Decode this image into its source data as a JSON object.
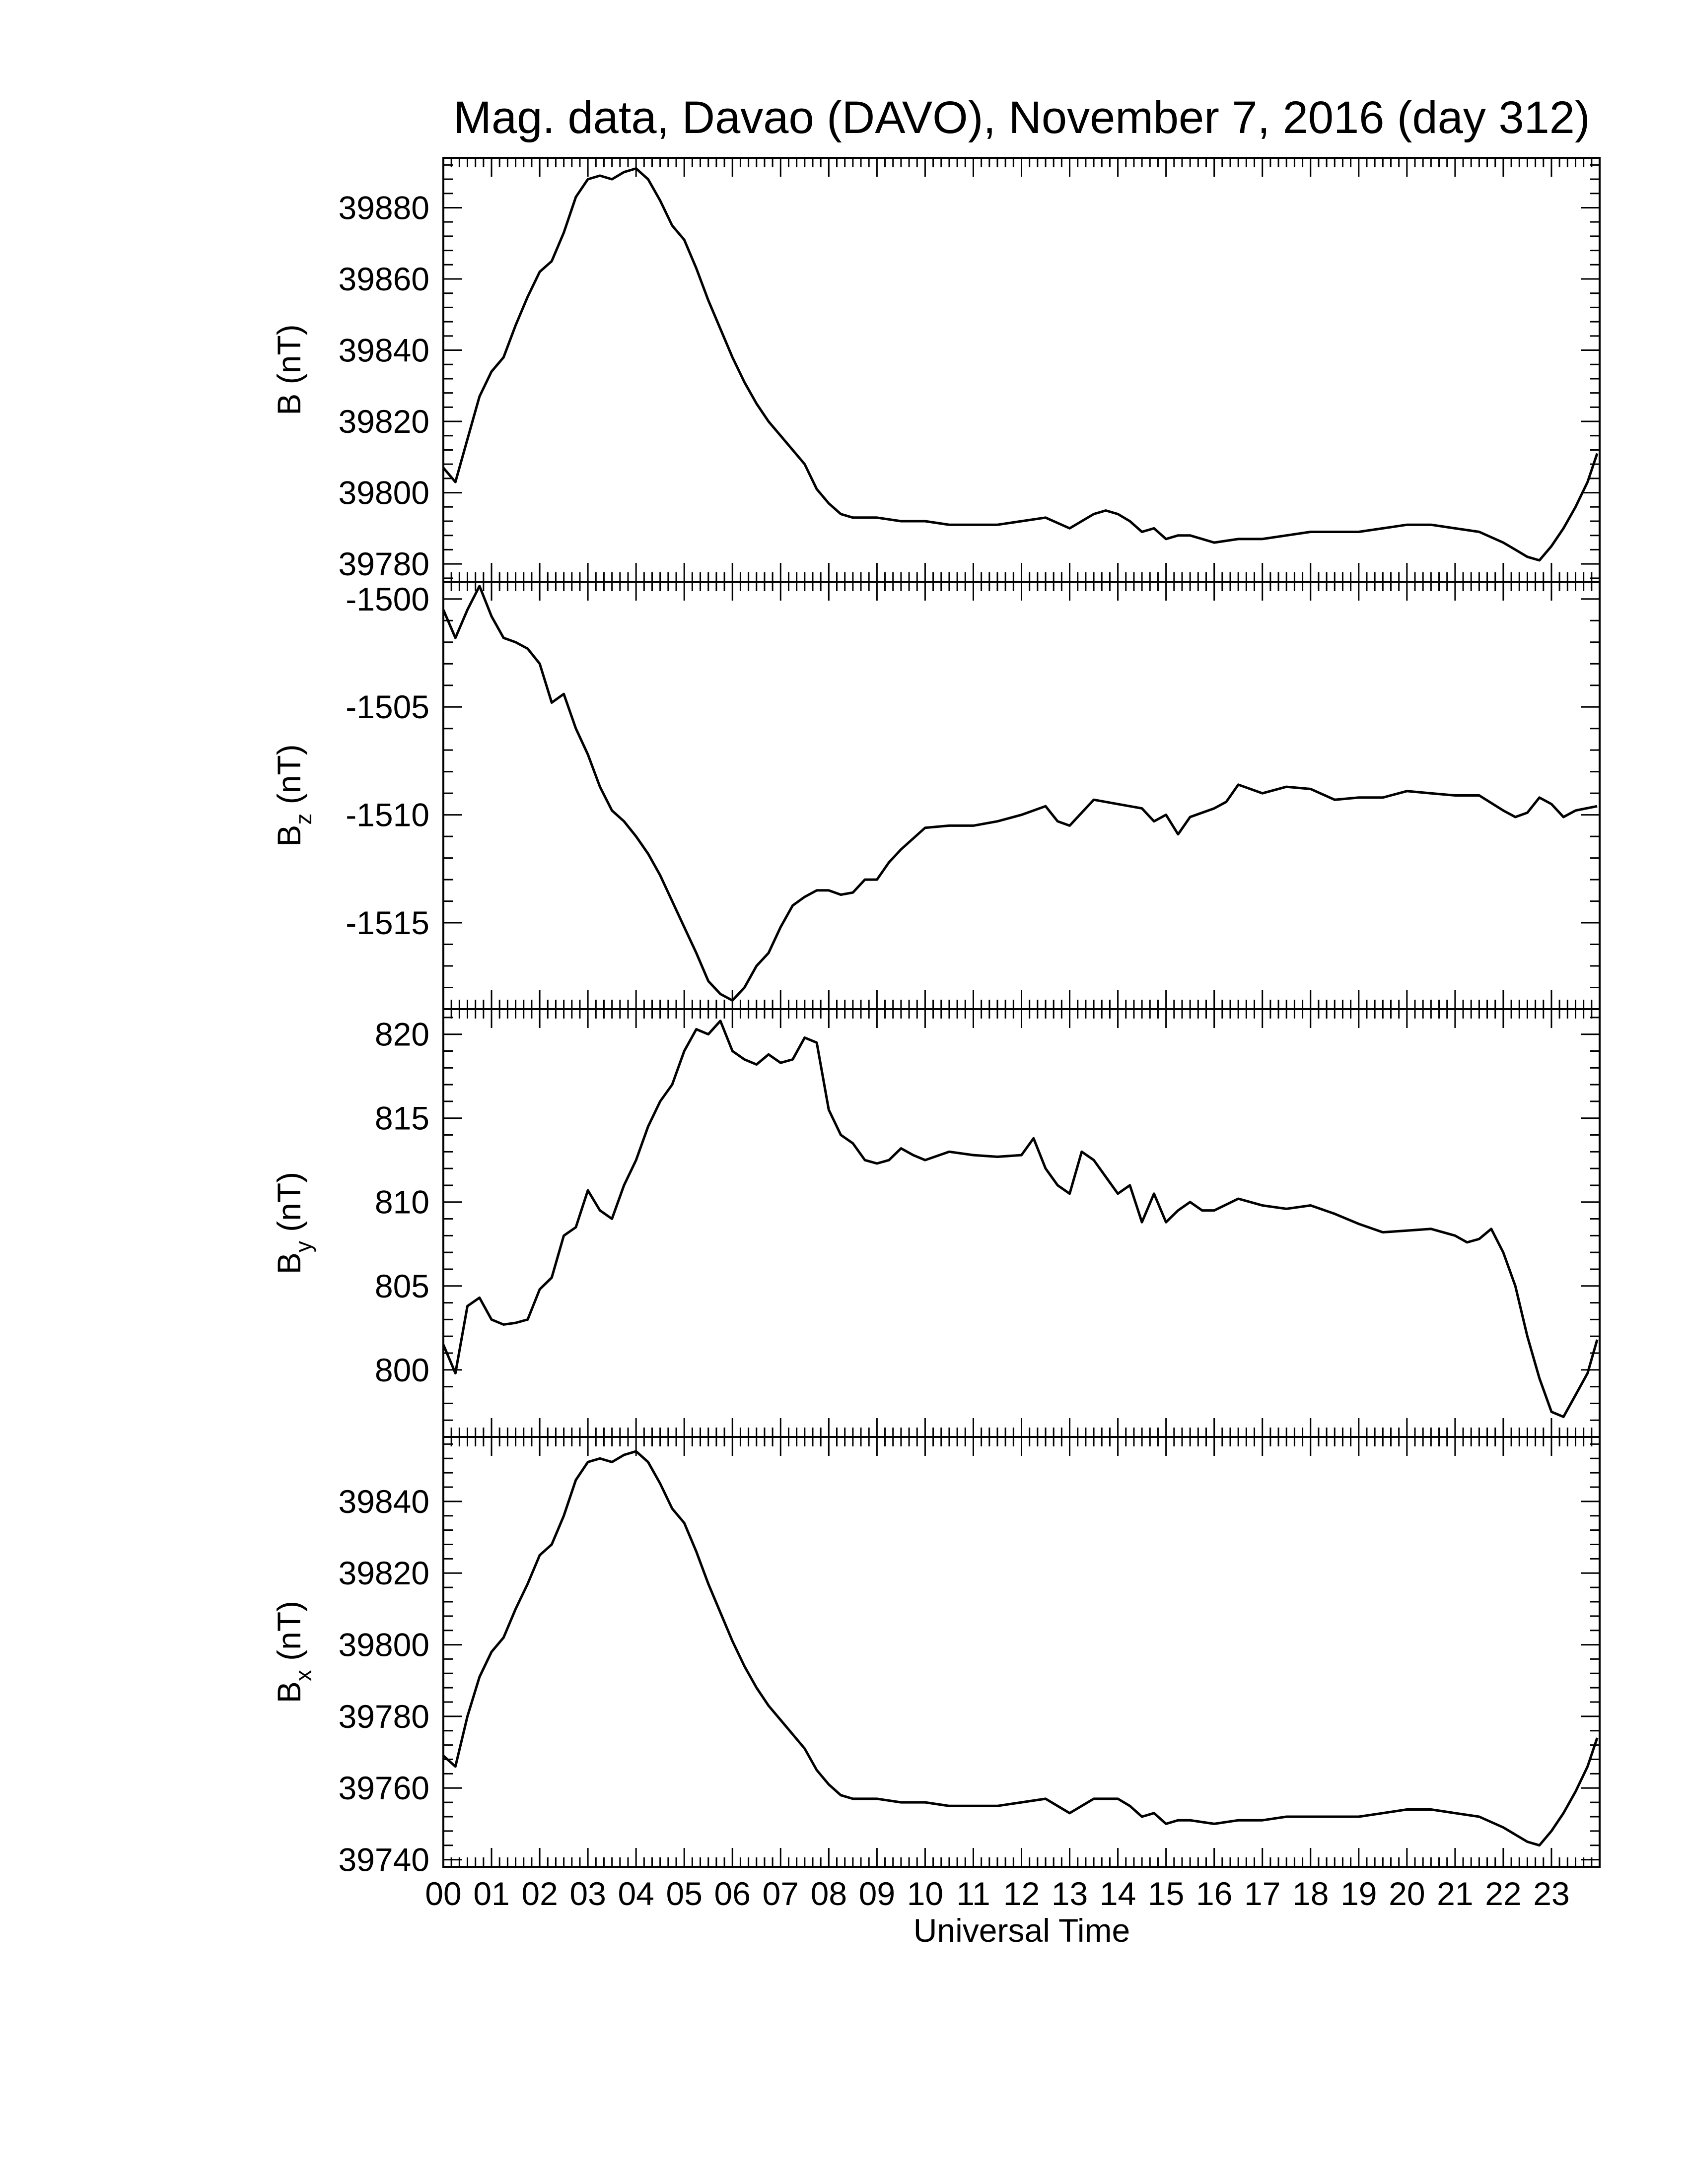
{
  "figure": {
    "title": "Mag. data, Davao (DAVO), November 7, 2016 (day 312)",
    "xlabel": "Universal Time",
    "line_color": "#000000",
    "background": "#ffffff"
  },
  "chart_data": [
    {
      "type": "line",
      "panel": "B",
      "ylabel": "B (nT)",
      "ylabel_main": "B",
      "ylabel_sub": "",
      "ylabel_unit": "(nT)",
      "ylim": [
        39775,
        39894
      ],
      "yticks": [
        39780,
        39800,
        39820,
        39840,
        39860,
        39880
      ],
      "xlim": [
        0,
        24
      ],
      "x": [
        0.0,
        0.25,
        0.5,
        0.75,
        1.0,
        1.25,
        1.5,
        1.75,
        2.0,
        2.25,
        2.5,
        2.75,
        3.0,
        3.25,
        3.5,
        3.75,
        4.0,
        4.25,
        4.5,
        4.75,
        5.0,
        5.25,
        5.5,
        5.75,
        6.0,
        6.25,
        6.5,
        6.75,
        7.0,
        7.25,
        7.5,
        7.75,
        8.0,
        8.25,
        8.5,
        8.75,
        9.0,
        9.5,
        10.0,
        10.5,
        11.0,
        11.5,
        12.0,
        12.5,
        13.0,
        13.25,
        13.5,
        13.75,
        14.0,
        14.25,
        14.5,
        14.75,
        15.0,
        15.25,
        15.5,
        16.0,
        16.5,
        17.0,
        17.5,
        18.0,
        18.5,
        19.0,
        19.5,
        20.0,
        20.5,
        21.0,
        21.5,
        22.0,
        22.25,
        22.5,
        22.75,
        23.0,
        23.25,
        23.5,
        23.75,
        23.95
      ],
      "values": [
        39807,
        39803,
        39815,
        39827,
        39834,
        39838,
        39847,
        39855,
        39862,
        39865,
        39873,
        39883,
        39888,
        39889,
        39888,
        39890,
        39891,
        39888,
        39882,
        39875,
        39871,
        39863,
        39854,
        39846,
        39838,
        39831,
        39825,
        39820,
        39816,
        39812,
        39808,
        39801,
        39797,
        39794,
        39793,
        39793,
        39793,
        39792,
        39792,
        39791,
        39791,
        39791,
        39792,
        39793,
        39790,
        39792,
        39794,
        39795,
        39794,
        39792,
        39789,
        39790,
        39787,
        39788,
        39788,
        39786,
        39787,
        39787,
        39788,
        39789,
        39789,
        39789,
        39790,
        39791,
        39791,
        39790,
        39789,
        39786,
        39784,
        39782,
        39781,
        39785,
        39790,
        39796,
        39803,
        39811
      ]
    },
    {
      "type": "line",
      "panel": "Bz",
      "ylabel": "Bz (nT)",
      "ylabel_main": "B",
      "ylabel_sub": "z",
      "ylabel_unit": "(nT)",
      "ylim": [
        -1519.0,
        -1499.2
      ],
      "yticks": [
        -1500,
        -1505,
        -1510,
        -1515
      ],
      "xlim": [
        0,
        24
      ],
      "x": [
        0.0,
        0.25,
        0.5,
        0.75,
        1.0,
        1.25,
        1.5,
        1.75,
        2.0,
        2.25,
        2.5,
        2.75,
        3.0,
        3.25,
        3.5,
        3.75,
        4.0,
        4.25,
        4.5,
        4.75,
        5.0,
        5.25,
        5.5,
        5.75,
        6.0,
        6.25,
        6.5,
        6.75,
        7.0,
        7.25,
        7.5,
        7.75,
        8.0,
        8.25,
        8.5,
        8.75,
        9.0,
        9.25,
        9.5,
        10.0,
        10.5,
        11.0,
        11.5,
        12.0,
        12.5,
        12.75,
        13.0,
        13.25,
        13.5,
        14.0,
        14.5,
        14.75,
        15.0,
        15.25,
        15.5,
        16.0,
        16.25,
        16.5,
        17.0,
        17.5,
        18.0,
        18.5,
        19.0,
        19.5,
        20.0,
        20.5,
        21.0,
        21.5,
        22.0,
        22.25,
        22.5,
        22.75,
        23.0,
        23.25,
        23.5,
        23.95
      ],
      "values": [
        -1500.5,
        -1501.8,
        -1500.5,
        -1499.4,
        -1500.8,
        -1501.8,
        -1502.0,
        -1502.3,
        -1503.0,
        -1504.8,
        -1504.4,
        -1506.0,
        -1507.2,
        -1508.7,
        -1509.8,
        -1510.3,
        -1511.0,
        -1511.8,
        -1512.8,
        -1514.0,
        -1515.2,
        -1516.4,
        -1517.7,
        -1518.3,
        -1518.6,
        -1518.0,
        -1517.0,
        -1516.4,
        -1515.2,
        -1514.2,
        -1513.8,
        -1513.5,
        -1513.5,
        -1513.7,
        -1513.6,
        -1513.0,
        -1513.0,
        -1512.2,
        -1511.6,
        -1510.6,
        -1510.5,
        -1510.5,
        -1510.3,
        -1510.0,
        -1509.6,
        -1510.3,
        -1510.5,
        -1509.9,
        -1509.3,
        -1509.5,
        -1509.7,
        -1510.3,
        -1510.0,
        -1510.9,
        -1510.1,
        -1509.7,
        -1509.4,
        -1508.6,
        -1509.0,
        -1508.7,
        -1508.8,
        -1509.3,
        -1509.2,
        -1509.2,
        -1508.9,
        -1509.0,
        -1509.1,
        -1509.1,
        -1509.8,
        -1510.1,
        -1509.9,
        -1509.2,
        -1509.5,
        -1510.1,
        -1509.8,
        -1509.6
      ]
    },
    {
      "type": "line",
      "panel": "By",
      "ylabel": "By (nT)",
      "ylabel_main": "B",
      "ylabel_sub": "y",
      "ylabel_unit": "(nT)",
      "ylim": [
        796.0,
        821.5
      ],
      "yticks": [
        800,
        805,
        810,
        815,
        820
      ],
      "xlim": [
        0,
        24
      ],
      "x": [
        0.0,
        0.25,
        0.5,
        0.75,
        1.0,
        1.25,
        1.5,
        1.75,
        2.0,
        2.25,
        2.5,
        2.75,
        3.0,
        3.25,
        3.5,
        3.75,
        4.0,
        4.25,
        4.5,
        4.75,
        5.0,
        5.25,
        5.5,
        5.75,
        6.0,
        6.25,
        6.5,
        6.75,
        7.0,
        7.25,
        7.5,
        7.75,
        8.0,
        8.25,
        8.5,
        8.75,
        9.0,
        9.25,
        9.5,
        9.75,
        10.0,
        10.5,
        11.0,
        11.5,
        12.0,
        12.25,
        12.5,
        12.75,
        13.0,
        13.25,
        13.5,
        13.75,
        14.0,
        14.25,
        14.5,
        14.75,
        15.0,
        15.25,
        15.5,
        15.75,
        16.0,
        16.5,
        17.0,
        17.5,
        18.0,
        18.5,
        19.0,
        19.5,
        20.0,
        20.5,
        21.0,
        21.25,
        21.5,
        21.75,
        22.0,
        22.25,
        22.5,
        22.75,
        23.0,
        23.25,
        23.5,
        23.75,
        23.95
      ],
      "values": [
        801.5,
        799.8,
        803.8,
        804.3,
        803.0,
        802.7,
        802.8,
        803.0,
        804.8,
        805.5,
        808.0,
        808.5,
        810.7,
        809.5,
        809.0,
        811.0,
        812.5,
        814.5,
        816.0,
        817.0,
        819.0,
        820.3,
        820.0,
        820.8,
        819.0,
        818.5,
        818.2,
        818.8,
        818.3,
        818.5,
        819.8,
        819.5,
        815.5,
        814.0,
        813.5,
        812.5,
        812.3,
        812.5,
        813.2,
        812.8,
        812.5,
        813.0,
        812.8,
        812.7,
        812.8,
        813.8,
        812.0,
        811.0,
        810.5,
        813.0,
        812.5,
        811.5,
        810.5,
        811.0,
        808.8,
        810.5,
        808.8,
        809.5,
        810.0,
        809.5,
        809.5,
        810.2,
        809.8,
        809.6,
        809.8,
        809.3,
        808.7,
        808.2,
        808.3,
        808.4,
        808.0,
        807.6,
        807.8,
        808.4,
        807.0,
        805.0,
        802.0,
        799.5,
        797.5,
        797.2,
        798.5,
        799.8,
        801.8
      ]
    },
    {
      "type": "line",
      "panel": "Bx",
      "ylabel": "Bx (nT)",
      "ylabel_main": "B",
      "ylabel_sub": "x",
      "ylabel_unit": "(nT)",
      "ylim": [
        39738,
        39858
      ],
      "yticks": [
        39740,
        39760,
        39780,
        39800,
        39820,
        39840
      ],
      "xlim": [
        0,
        24
      ],
      "x": [
        0.0,
        0.25,
        0.5,
        0.75,
        1.0,
        1.25,
        1.5,
        1.75,
        2.0,
        2.25,
        2.5,
        2.75,
        3.0,
        3.25,
        3.5,
        3.75,
        4.0,
        4.25,
        4.5,
        4.75,
        5.0,
        5.25,
        5.5,
        5.75,
        6.0,
        6.25,
        6.5,
        6.75,
        7.0,
        7.25,
        7.5,
        7.75,
        8.0,
        8.25,
        8.5,
        8.75,
        9.0,
        9.5,
        10.0,
        10.5,
        11.0,
        11.5,
        12.0,
        12.5,
        13.0,
        13.25,
        13.5,
        13.75,
        14.0,
        14.25,
        14.5,
        14.75,
        15.0,
        15.25,
        15.5,
        16.0,
        16.5,
        17.0,
        17.5,
        18.0,
        18.5,
        19.0,
        19.5,
        20.0,
        20.5,
        21.0,
        21.5,
        22.0,
        22.25,
        22.5,
        22.75,
        23.0,
        23.25,
        23.5,
        23.75,
        23.95
      ],
      "values": [
        39769,
        39766,
        39780,
        39791,
        39798,
        39802,
        39810,
        39817,
        39825,
        39828,
        39836,
        39846,
        39851,
        39852,
        39851,
        39853,
        39854,
        39851,
        39845,
        39838,
        39834,
        39826,
        39817,
        39809,
        39801,
        39794,
        39788,
        39783,
        39779,
        39775,
        39771,
        39765,
        39761,
        39758,
        39757,
        39757,
        39757,
        39756,
        39756,
        39755,
        39755,
        39755,
        39756,
        39757,
        39753,
        39755,
        39757,
        39757,
        39757,
        39755,
        39752,
        39753,
        39750,
        39751,
        39751,
        39750,
        39751,
        39751,
        39752,
        39752,
        39752,
        39752,
        39753,
        39754,
        39754,
        39753,
        39752,
        39749,
        39747,
        39745,
        39744,
        39748,
        39753,
        39759,
        39766,
        39774
      ]
    }
  ]
}
